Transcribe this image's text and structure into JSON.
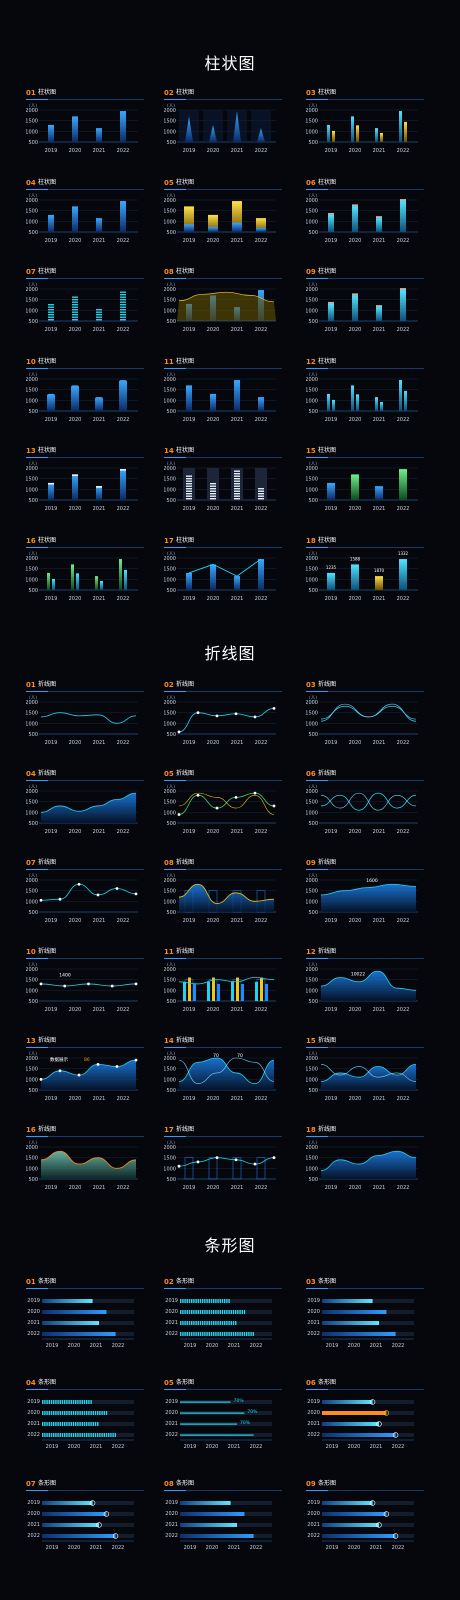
{
  "sections": [
    {
      "key": "bar",
      "title": "柱状图",
      "label": "柱状图",
      "count": 18
    },
    {
      "key": "line",
      "title": "折线图",
      "label": "折线图",
      "count": 18
    },
    {
      "key": "hbar",
      "title": "条形图",
      "label": "条形图",
      "count": 9
    }
  ],
  "unit": "(人)",
  "y_ticks": [
    "2000",
    "1500",
    "1000",
    "500"
  ],
  "x_ticks": [
    "2019",
    "2020",
    "2021",
    "2022"
  ],
  "colors": {
    "blue": "#1f8bff",
    "cyan": "#22d3ee",
    "yellow": "#f2c618",
    "green": "#46d16b",
    "orange": "#ff8a1e",
    "grid": "#18263c",
    "axis": "#2a6bb0",
    "text": "#c9d4e3"
  },
  "chart_data": [
    {
      "type": "bar",
      "section": "柱状图",
      "ylim": [
        500,
        2000
      ],
      "categories": [
        "2019",
        "2020",
        "2021",
        "2022"
      ],
      "values": [
        1300,
        1700,
        1150,
        1950
      ]
    },
    {
      "type": "line",
      "section": "折线图",
      "ylim": [
        500,
        2000
      ],
      "categories": [
        "2019",
        "2020",
        "2021",
        "2022"
      ],
      "values": [
        1300,
        1500,
        1000,
        1350
      ]
    },
    {
      "type": "bar",
      "section": "条形图",
      "xlim": [
        0,
        100
      ],
      "categories": [
        "2019",
        "2020",
        "2021",
        "2022"
      ],
      "values": [
        55,
        70,
        62,
        80
      ]
    }
  ],
  "bar_annotations": [
    "1235",
    "1588",
    "1870",
    "1332"
  ],
  "line_annotations": {
    "tip1": "1400",
    "tip2": "1600",
    "tip3": "10022",
    "tip4": "数据展示",
    "tip4_value": "86",
    "tip5a": "70",
    "tip5b": "70"
  },
  "hbar_annotations": [
    "70%",
    "70%",
    "70%"
  ]
}
